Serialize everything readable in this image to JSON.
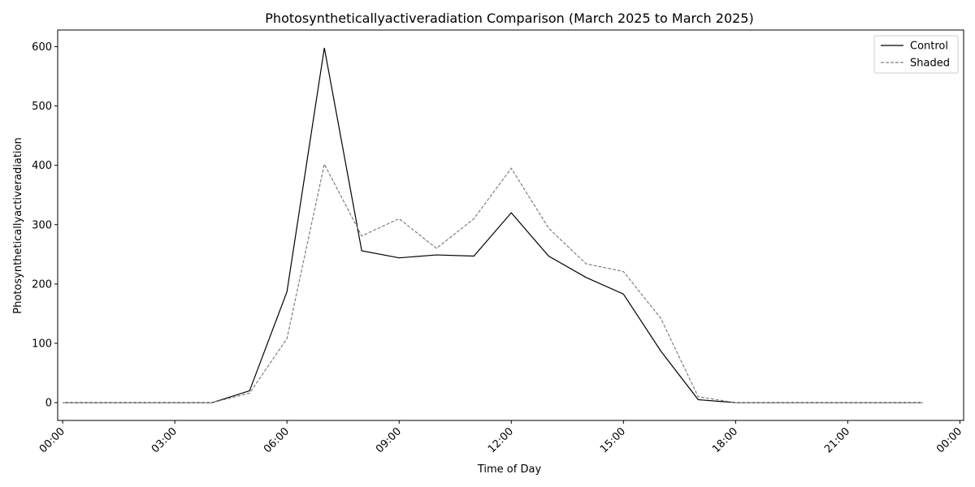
{
  "chart_data": {
    "type": "line",
    "title": "Photosyntheticallyactiveradiation Comparison (March 2025 to March 2025)",
    "xlabel": "Time of Day",
    "ylabel": "Photosyntheticallyactiveradiation",
    "x": [
      "00:00",
      "01:00",
      "02:00",
      "03:00",
      "04:00",
      "05:00",
      "06:00",
      "07:00",
      "08:00",
      "09:00",
      "10:00",
      "11:00",
      "12:00",
      "13:00",
      "14:00",
      "15:00",
      "16:00",
      "17:00",
      "18:00",
      "19:00",
      "20:00",
      "21:00",
      "22:00",
      "23:00"
    ],
    "xticks": [
      "00:00",
      "03:00",
      "06:00",
      "09:00",
      "12:00",
      "15:00",
      "18:00",
      "21:00",
      "00:00"
    ],
    "xlim": [
      "23:52",
      "00:06 (+1 day)"
    ],
    "yticks": [
      0,
      100,
      200,
      300,
      400,
      500,
      600
    ],
    "ylim": [
      -30,
      628
    ],
    "grid": false,
    "legend_position": "top-right",
    "series": [
      {
        "name": "Control",
        "color": "#000000",
        "style": "solid",
        "values": [
          0,
          0,
          0,
          0,
          0,
          20,
          187,
          598,
          256,
          244,
          249,
          247,
          320,
          247,
          211,
          183,
          87,
          5,
          0,
          0,
          0,
          0,
          0,
          0
        ]
      },
      {
        "name": "Shaded",
        "color": "#808080",
        "style": "dashed",
        "values": [
          0,
          0,
          0,
          0,
          0,
          16,
          108,
          402,
          281,
          310,
          260,
          310,
          395,
          294,
          234,
          221,
          142,
          10,
          0,
          0,
          0,
          0,
          0,
          0
        ]
      }
    ]
  }
}
